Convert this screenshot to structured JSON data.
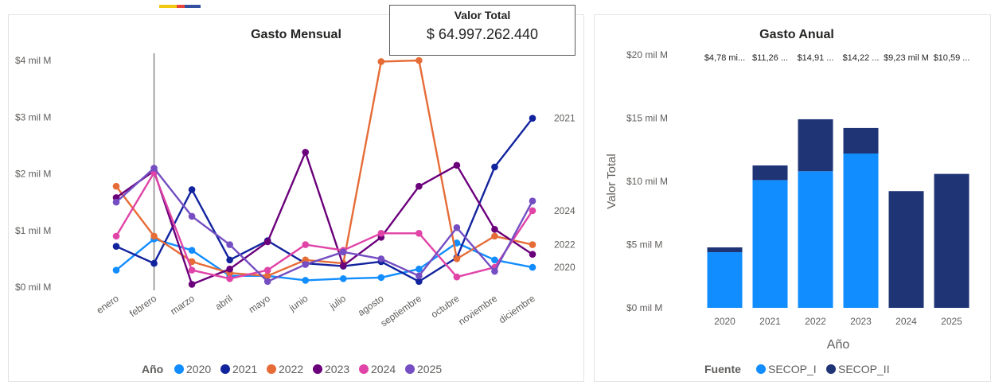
{
  "colors": {
    "y2020": "#118dff",
    "y2021": "#12239e",
    "y2022": "#e66c37",
    "y2023": "#6b007b",
    "y2024": "#e044a7",
    "y2025": "#744ec2",
    "secop_i": "#118dff",
    "secop_ii": "#1f3475",
    "accent": [
      "#f2c811",
      "#e8463c",
      "#3450a0"
    ]
  },
  "kpi": {
    "label": "Valor Total",
    "value": "$ 64.997.262.440"
  },
  "chart_data": [
    {
      "type": "line",
      "title": "Gasto Mensual",
      "xlabel": "",
      "ylabel": "",
      "categories": [
        "enero",
        "febrero",
        "marzo",
        "abril",
        "mayo",
        "junio",
        "julio",
        "agosto",
        "septiembre",
        "octubre",
        "noviembre",
        "diciembre"
      ],
      "y_ticks": [
        {
          "value": 0,
          "label": "$0 mil M"
        },
        {
          "value": 1,
          "label": "$1 mil M"
        },
        {
          "value": 2,
          "label": "$2 mil M"
        },
        {
          "value": 3,
          "label": "$3 mil M"
        },
        {
          "value": 4,
          "label": "$4 mil M"
        }
      ],
      "ylim": [
        0,
        4
      ],
      "legend_title": "Año",
      "legend_position": "bottom",
      "series": [
        {
          "name": "2020",
          "color_key": "y2020",
          "end_label": "2020",
          "values": [
            0.3,
            0.85,
            0.65,
            0.2,
            0.2,
            0.12,
            0.15,
            0.17,
            0.32,
            0.78,
            0.48,
            0.35
          ]
        },
        {
          "name": "2021",
          "color_key": "y2021",
          "end_label": "2021",
          "values": [
            0.72,
            0.42,
            1.72,
            0.48,
            0.82,
            0.42,
            0.37,
            0.45,
            0.1,
            0.52,
            2.12,
            2.98
          ]
        },
        {
          "name": "2022",
          "color_key": "y2022",
          "end_label": "2022",
          "values": [
            1.78,
            0.9,
            0.45,
            0.25,
            0.2,
            0.48,
            0.42,
            3.98,
            4.0,
            0.5,
            0.9,
            0.75
          ]
        },
        {
          "name": "2023",
          "color_key": "y2023",
          "end_label": "",
          "values": [
            1.58,
            2.05,
            0.05,
            0.32,
            0.8,
            2.38,
            0.38,
            0.88,
            1.78,
            2.15,
            1.02,
            0.58
          ]
        },
        {
          "name": "2024",
          "color_key": "y2024",
          "end_label": "2024",
          "values": [
            0.9,
            2.02,
            0.3,
            0.15,
            0.3,
            0.75,
            0.65,
            0.95,
            0.95,
            0.18,
            0.35,
            1.35
          ]
        },
        {
          "name": "2025",
          "color_key": "y2025",
          "end_label": "",
          "values": [
            1.5,
            2.1,
            1.25,
            0.75,
            0.1,
            0.4,
            0.62,
            0.5,
            0.2,
            1.05,
            0.28,
            1.52
          ]
        }
      ]
    },
    {
      "type": "bar",
      "stacked": true,
      "title": "Gasto Anual",
      "xlabel": "Año",
      "ylabel": "Valor Total",
      "categories": [
        "2020",
        "2021",
        "2022",
        "2023",
        "2024",
        "2025"
      ],
      "y_ticks": [
        {
          "value": 0,
          "label": "$0 mil M"
        },
        {
          "value": 5,
          "label": "$5 mil M"
        },
        {
          "value": 10,
          "label": "$10 mil M"
        },
        {
          "value": 15,
          "label": "$15 mil M"
        },
        {
          "value": 20,
          "label": "$20 mil M"
        }
      ],
      "ylim": [
        0,
        20
      ],
      "legend_title": "Fuente",
      "legend_position": "bottom",
      "total_labels": [
        "$4,78 mi...",
        "$11,26 ...",
        "$14,91 ...",
        "$14,22 ...",
        "$9,23 mil M",
        "$10,59 ..."
      ],
      "series": [
        {
          "name": "SECOP_I",
          "color_key": "secop_i",
          "values": [
            4.4,
            10.1,
            10.8,
            12.2,
            0,
            0
          ]
        },
        {
          "name": "SECOP_II",
          "color_key": "secop_ii",
          "values": [
            0.38,
            1.16,
            4.11,
            2.02,
            9.23,
            10.59
          ]
        }
      ]
    }
  ]
}
